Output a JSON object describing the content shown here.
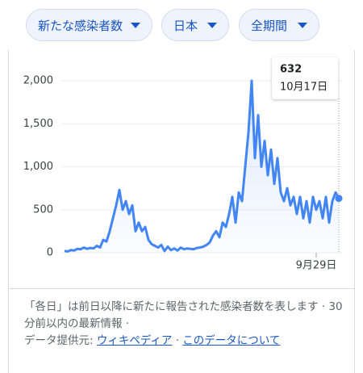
{
  "filters": [
    "新たな感染者数",
    "日本",
    "全期間"
  ],
  "chart_data": {
    "type": "line",
    "color": "#4285f4",
    "categories": [
      null,
      null,
      null,
      null,
      null,
      null,
      null,
      null,
      null,
      null,
      null,
      null,
      null,
      null,
      null,
      null,
      null,
      null,
      null,
      null,
      null,
      null,
      null,
      null,
      null,
      null,
      null,
      null,
      null,
      null,
      null,
      null,
      null,
      null,
      null,
      null,
      null,
      null,
      null,
      null,
      null,
      null,
      null,
      null,
      null,
      null,
      null,
      null,
      null,
      null,
      null,
      null,
      null,
      null,
      null,
      null,
      null,
      null,
      null,
      null,
      null,
      null,
      null,
      null,
      null,
      null,
      null,
      null,
      null,
      null,
      null,
      null,
      null,
      null,
      null,
      null,
      null,
      null,
      "9月29日",
      null,
      null,
      null,
      null,
      null,
      null,
      null
    ],
    "values": [
      20,
      15,
      30,
      25,
      45,
      40,
      60,
      45,
      55,
      50,
      80,
      60,
      150,
      130,
      250,
      400,
      550,
      730,
      500,
      600,
      450,
      550,
      250,
      350,
      250,
      300,
      150,
      100,
      80,
      60,
      90,
      20,
      70,
      30,
      50,
      25,
      60,
      40,
      50,
      45,
      40,
      55,
      60,
      70,
      90,
      120,
      200,
      250,
      180,
      350,
      300,
      450,
      650,
      350,
      700,
      600,
      1000,
      1400,
      2000,
      1100,
      1600,
      1000,
      1300,
      900,
      1200,
      800,
      1100,
      700,
      600,
      750,
      550,
      650,
      450,
      650,
      400,
      600,
      350,
      650,
      500,
      600,
      400,
      650,
      350,
      600,
      700,
      632
    ],
    "ylim": [
      0,
      2000
    ],
    "yticks": [
      0,
      500,
      {
        "value": 1000,
        "label": "1,000"
      },
      {
        "value": 1500,
        "label": "1,500"
      },
      {
        "value": 2000,
        "label": "2,000"
      }
    ],
    "grid": true,
    "tooltip_date": "10月17日"
  },
  "footer": {
    "note": "「各日」は前日以降に新たに報告された感染者数を表します",
    "updated": "30 分前以内の最新情報",
    "source_label": "データ提供元:",
    "source": "ウィキペディア",
    "about": "このデータについて"
  }
}
